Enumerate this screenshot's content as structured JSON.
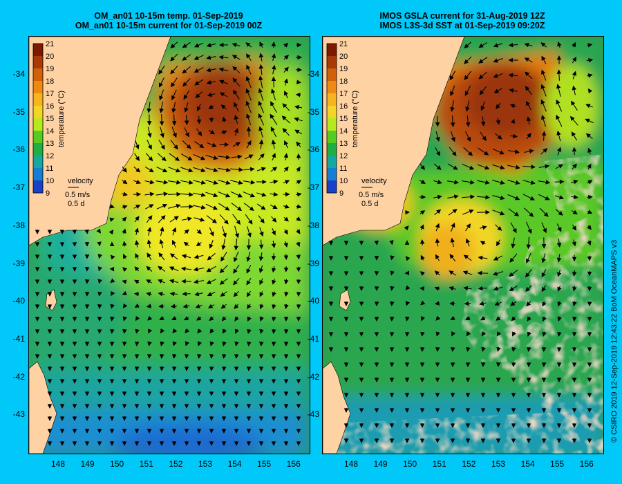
{
  "left": {
    "title1": "OM_an01 10-15m temp. 01-Sep-2019",
    "title2": "OM_an01 10-15m current for 01-Sep-2019 00Z"
  },
  "right": {
    "title1": "IMOS GSLA current for 31-Aug-2019 12Z",
    "title2": "IMOS L3S-3d SST at 01-Sep-2019 09:20Z"
  },
  "colorbar": {
    "ticks": [
      "21",
      "20",
      "19",
      "18",
      "17",
      "16",
      "15",
      "14",
      "13",
      "12",
      "11",
      "10",
      "9"
    ],
    "label": "temperature (°C)",
    "colors": [
      "#7a1a00",
      "#a83a08",
      "#d2600a",
      "#ee8a12",
      "#f7b41e",
      "#f2d626",
      "#b6ea1e",
      "#54cc20",
      "#1fae43",
      "#14a8a0",
      "#167ed2",
      "#1a40c8",
      "#101088"
    ]
  },
  "velocity": {
    "title": "velocity",
    "scale": "0.5 m/s",
    "time": "0.5 d"
  },
  "y_labels": [
    "-34",
    "-35",
    "-36",
    "-37",
    "-38",
    "-39",
    "-40",
    "-41",
    "-42",
    "-43"
  ],
  "x_labels": [
    "148",
    "149",
    "150",
    "151",
    "152",
    "153",
    "154",
    "155",
    "156"
  ],
  "footer": "© CSIRO 2019   12-Sep-2019 12:43:22 BoM OceanMAPS v3",
  "colors": {
    "background": "#00c8f8",
    "land": "#ffd2a4",
    "missing": "#c8a888",
    "arrow": "#000000"
  }
}
